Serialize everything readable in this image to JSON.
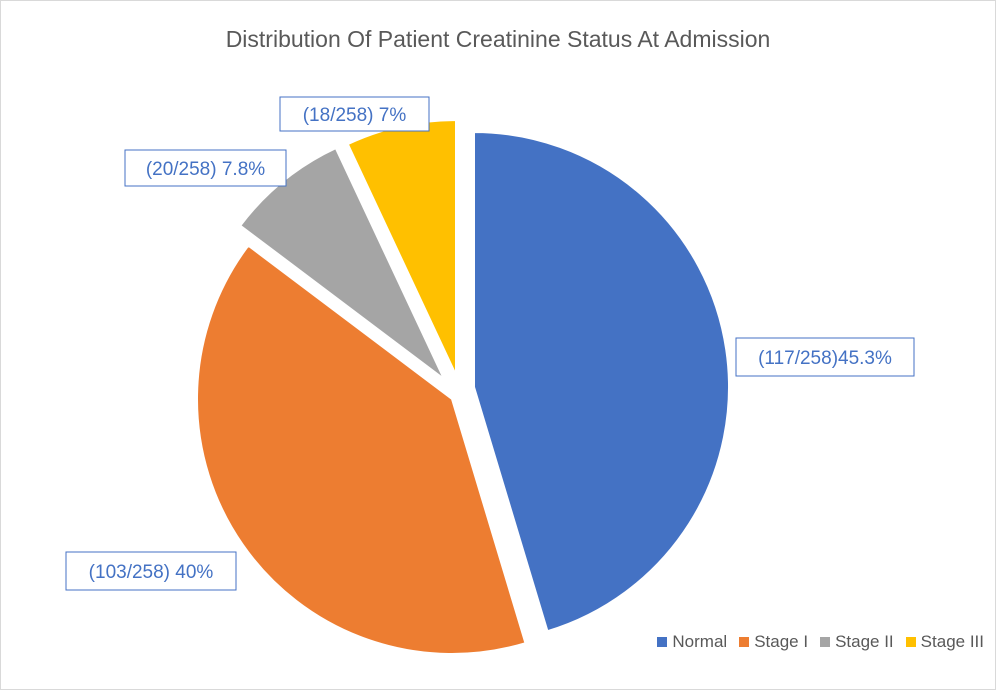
{
  "chart_data": {
    "type": "pie",
    "title": "Distribution Of Patient Creatinine Status At Admission",
    "total": 258,
    "slices": [
      {
        "name": "Normal",
        "count": 117,
        "percent": 45.3,
        "label": "(117/258)45.3%",
        "color": "#4472C4"
      },
      {
        "name": "Stage I",
        "count": 103,
        "percent": 40,
        "label": "(103/258) 40%",
        "color": "#ED7D31"
      },
      {
        "name": "Stage II",
        "count": 20,
        "percent": 7.8,
        "label": "(20/258) 7.8%",
        "color": "#A5A5A5"
      },
      {
        "name": "Stage III",
        "count": 18,
        "percent": 7,
        "label": "(18/258) 7%",
        "color": "#FFC000"
      }
    ],
    "legend_position": "bottom-right",
    "label_color": "#4472C4"
  }
}
